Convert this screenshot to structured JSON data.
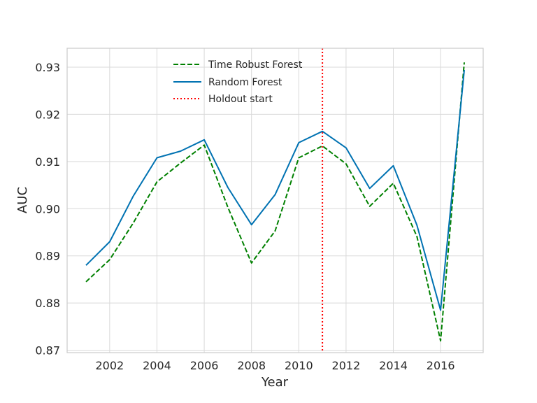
{
  "chart_data": {
    "type": "line",
    "title": "",
    "xlabel": "Year",
    "ylabel": "AUC",
    "xlim": [
      2000.2,
      2017.8
    ],
    "ylim": [
      0.8695,
      0.934
    ],
    "x_ticks": [
      2002,
      2004,
      2006,
      2008,
      2010,
      2012,
      2014,
      2016
    ],
    "x_tick_labels": [
      "2002",
      "2004",
      "2006",
      "2008",
      "2010",
      "2012",
      "2014",
      "2016"
    ],
    "y_ticks": [
      0.87,
      0.88,
      0.89,
      0.9,
      0.91,
      0.92,
      0.93
    ],
    "y_tick_labels": [
      "0.87",
      "0.88",
      "0.89",
      "0.90",
      "0.91",
      "0.92",
      "0.93"
    ],
    "grid": true,
    "legend_position": "top-center",
    "x": [
      2001,
      2002,
      2003,
      2004,
      2005,
      2006,
      2007,
      2008,
      2009,
      2010,
      2011,
      2012,
      2013,
      2014,
      2015,
      2016,
      2017
    ],
    "series": [
      {
        "name": "Time Robust Forest",
        "color": "#008000",
        "dash": "dashed",
        "values": [
          0.8845,
          0.8892,
          0.897,
          0.9057,
          0.9097,
          0.9135,
          0.9003,
          0.8885,
          0.8953,
          0.9108,
          0.9133,
          0.9095,
          0.9005,
          0.9054,
          0.8941,
          0.872,
          0.931
        ]
      },
      {
        "name": "Random Forest",
        "color": "#0072b2",
        "dash": "solid",
        "values": [
          0.888,
          0.893,
          0.9027,
          0.9108,
          0.9122,
          0.9146,
          0.9045,
          0.8966,
          0.903,
          0.914,
          0.9164,
          0.9129,
          0.9043,
          0.9091,
          0.8965,
          0.8785,
          0.9294
        ]
      }
    ],
    "vlines": [
      {
        "name": "Holdout start",
        "x": 2011,
        "color": "#ff0000",
        "dash": "dotted"
      }
    ]
  }
}
